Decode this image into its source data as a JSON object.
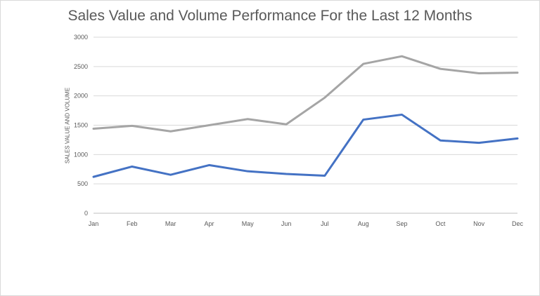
{
  "chart_data": {
    "type": "line",
    "title": "Sales Value and Volume Performance For the Last 12 Months",
    "xlabel": "",
    "ylabel": "SALES VALUE AND VOLUME",
    "categories": [
      "Jan",
      "Feb",
      "Mar",
      "Apr",
      "May",
      "Jun",
      "Jul",
      "Aug",
      "Sep",
      "Oct",
      "Nov",
      "Dec"
    ],
    "ylim": [
      0,
      3000
    ],
    "yticks": [
      0,
      500,
      1000,
      1500,
      2000,
      2500,
      3000
    ],
    "grid": true,
    "legend": "none",
    "series": [
      {
        "color": "#a5a5a5",
        "values": [
          1440,
          1490,
          1395,
          1500,
          1605,
          1515,
          1970,
          2545,
          2675,
          2460,
          2385,
          2395
        ]
      },
      {
        "color": "#4472c4",
        "values": [
          620,
          795,
          655,
          820,
          715,
          670,
          640,
          1595,
          1680,
          1240,
          1200,
          1275
        ]
      }
    ]
  }
}
